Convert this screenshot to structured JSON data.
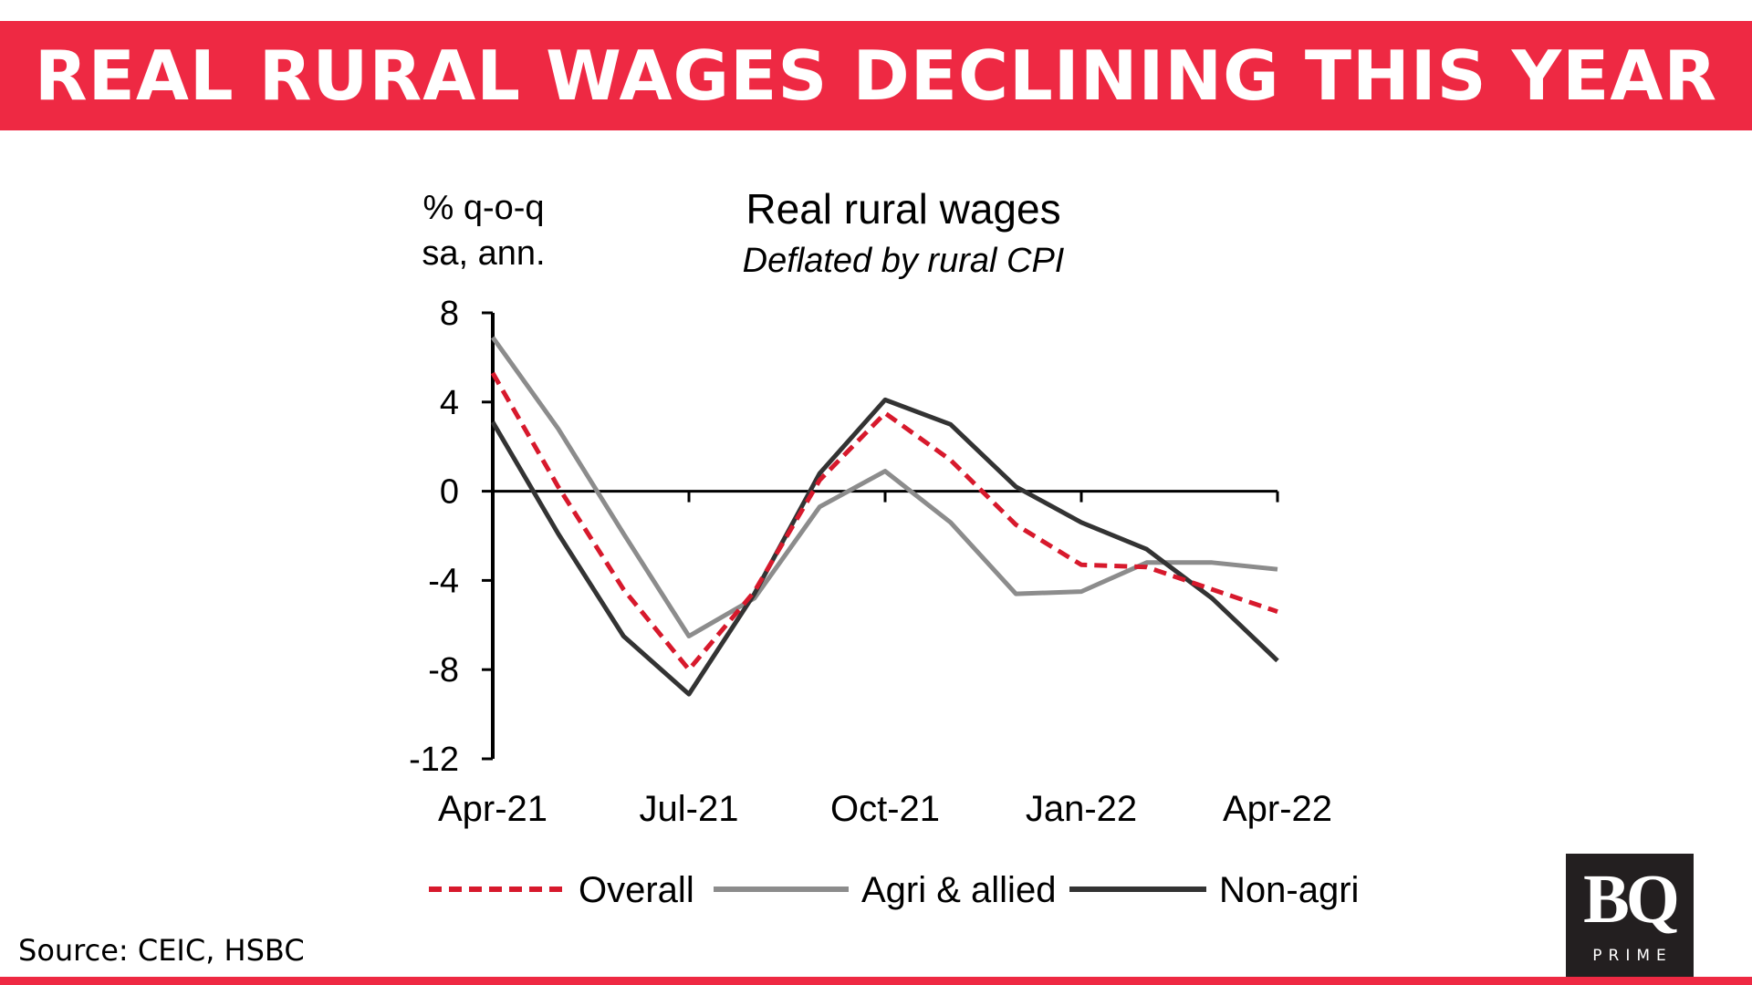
{
  "banner": {
    "title": "REAL RURAL WAGES DECLINING THIS YEAR"
  },
  "colors": {
    "accent": "#ee2943",
    "overall": "#d7192c",
    "agri": "#8c8c8c",
    "nonagri": "#333333"
  },
  "chart_data": {
    "type": "line",
    "title": "Real rural wages",
    "subtitle": "Deflated by rural CPI",
    "ylabel_line1": "% q-o-q",
    "ylabel_line2": "sa, ann.",
    "xlabel": "",
    "ylim": [
      -12,
      8
    ],
    "yticks": [
      8,
      4,
      0,
      -4,
      -8,
      -12
    ],
    "xticklabels": [
      "Apr-21",
      "Jul-21",
      "Oct-21",
      "Jan-22",
      "Apr-22"
    ],
    "x": [
      "Apr-21",
      "May-21",
      "Jun-21",
      "Jul-21",
      "Aug-21",
      "Sep-21",
      "Oct-21",
      "Nov-21",
      "Dec-21",
      "Jan-22",
      "Feb-22",
      "Mar-22",
      "Apr-22"
    ],
    "grid": false,
    "legend_position": "bottom",
    "series": [
      {
        "name": "Overall",
        "style": "dashed",
        "color": "#d7192c",
        "values": [
          5.3,
          0.2,
          -4.4,
          -8.0,
          -4.5,
          0.5,
          3.5,
          1.4,
          -1.5,
          -3.3,
          -3.4,
          -4.4,
          -5.4
        ]
      },
      {
        "name": "Agri & allied",
        "style": "solid",
        "color": "#8c8c8c",
        "values": [
          6.9,
          2.8,
          -1.9,
          -6.5,
          -4.8,
          -0.7,
          0.9,
          -1.4,
          -4.6,
          -4.5,
          -3.2,
          -3.2,
          -3.5
        ]
      },
      {
        "name": "Non-agri",
        "style": "solid",
        "color": "#333333",
        "values": [
          3.1,
          -1.9,
          -6.5,
          -9.1,
          -4.6,
          0.8,
          4.1,
          3.0,
          0.2,
          -1.4,
          -2.6,
          -4.8,
          -7.6
        ]
      }
    ]
  },
  "source": "Source: CEIC, HSBC",
  "logo": {
    "mark": "BQ",
    "sub": "PRIME"
  }
}
